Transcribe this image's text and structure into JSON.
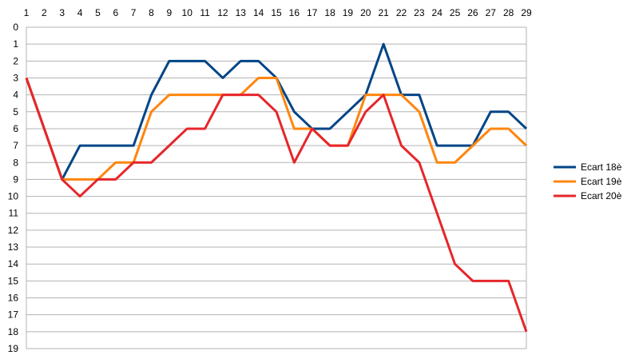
{
  "chart_data": {
    "type": "line",
    "title": "",
    "xlabel": "",
    "ylabel": "",
    "x": [
      1,
      2,
      3,
      4,
      5,
      6,
      7,
      8,
      9,
      10,
      11,
      12,
      13,
      14,
      15,
      16,
      17,
      18,
      19,
      20,
      21,
      22,
      23,
      24,
      25,
      26,
      27,
      28,
      29
    ],
    "ylim": [
      0,
      19
    ],
    "y_inverted": true,
    "x_axis_position": "top",
    "yticks": [
      0,
      1,
      2,
      3,
      4,
      5,
      6,
      7,
      8,
      9,
      10,
      11,
      12,
      13,
      14,
      15,
      16,
      17,
      18,
      19
    ],
    "grid": "horizontal",
    "legend_position": "right",
    "series": [
      {
        "name": "Ecart 18è",
        "color": "#004586",
        "values": [
          3,
          null,
          9,
          7,
          7,
          7,
          7,
          4,
          2,
          2,
          2,
          3,
          2,
          2,
          3,
          5,
          6,
          6,
          5,
          4,
          1,
          4,
          4,
          7,
          7,
          7,
          5,
          5,
          6
        ]
      },
      {
        "name": "Ecart 19è",
        "color": "#ff850e",
        "values": [
          3,
          null,
          9,
          9,
          9,
          8,
          8,
          5,
          4,
          4,
          4,
          4,
          4,
          3,
          3,
          6,
          6,
          7,
          7,
          4,
          4,
          4,
          5,
          8,
          8,
          7,
          6,
          6,
          7
        ]
      },
      {
        "name": "Ecart 20è",
        "color": "#e6262b",
        "values": [
          3,
          null,
          9,
          10,
          9,
          9,
          8,
          8,
          7,
          6,
          6,
          4,
          4,
          4,
          5,
          8,
          6,
          7,
          7,
          5,
          4,
          7,
          8,
          11,
          14,
          15,
          15,
          15,
          18
        ]
      }
    ]
  }
}
